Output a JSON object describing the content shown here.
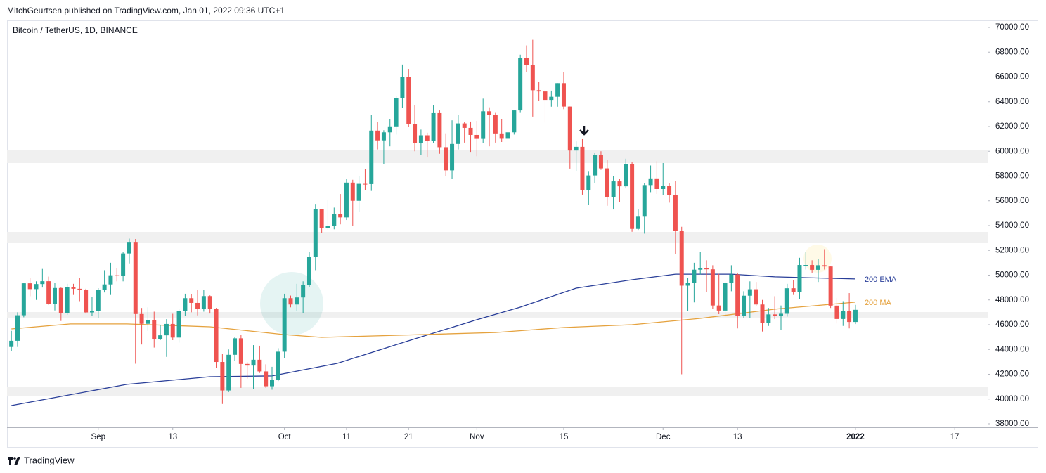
{
  "header": {
    "publisher": "MitchGeurtsen published on TradingView.com, Jan 01, 2022 09:36 UTC+1",
    "footer": "TradingView"
  },
  "chart_data": {
    "type": "candlestick",
    "symbol": "Bitcoin / TetherUS, 1D, BINANCE",
    "up_color": "#26a69a",
    "down_color": "#ef5350",
    "xlim": [
      -0.7,
      157.3
    ],
    "xticks": [
      {
        "value": 14,
        "label": "Sep"
      },
      {
        "value": 26,
        "label": "13"
      },
      {
        "value": 44,
        "label": "Oct"
      },
      {
        "value": 54,
        "label": "11"
      },
      {
        "value": 64,
        "label": "21"
      },
      {
        "value": 75,
        "label": "Nov"
      },
      {
        "value": 89,
        "label": "15"
      },
      {
        "value": 105,
        "label": "Dec"
      },
      {
        "value": 117,
        "label": "13"
      },
      {
        "value": 136,
        "label": "2022"
      },
      {
        "value": 152,
        "label": "17"
      }
    ],
    "ylim": [
      37715,
      70510
    ],
    "yticks": [
      {
        "value": 38000,
        "label": "38000.00"
      },
      {
        "value": 40000,
        "label": "40000.00"
      },
      {
        "value": 42000,
        "label": "42000.00"
      },
      {
        "value": 44000,
        "label": "44000.00"
      },
      {
        "value": 46000,
        "label": "46000.00"
      },
      {
        "value": 48000,
        "label": "48000.00"
      },
      {
        "value": 50000,
        "label": "50000.00"
      },
      {
        "value": 52000,
        "label": "52000.00"
      },
      {
        "value": 54000,
        "label": "54000.00"
      },
      {
        "value": 56000,
        "label": "56000.00"
      },
      {
        "value": 58000,
        "label": "58000.00"
      },
      {
        "value": 60000,
        "label": "60000.00"
      },
      {
        "value": 62000,
        "label": "62000.00"
      },
      {
        "value": 64000,
        "label": "64000.00"
      },
      {
        "value": 66000,
        "label": "66000.00"
      },
      {
        "value": 68000,
        "label": "68000.00"
      },
      {
        "value": 70000,
        "label": "70000.00"
      }
    ],
    "zones": [
      [
        59050,
        60070
      ],
      [
        52580,
        53490
      ],
      [
        46570,
        47020
      ],
      [
        40210,
        41000
      ]
    ],
    "zone_color": "#f0f0f0",
    "lines": [
      {
        "name": "200 EMA",
        "color": "#2a3f99",
        "x": [
          0,
          18.6,
          32,
          42,
          52.5,
          64,
          75,
          82,
          91,
          100,
          107,
          116,
          123,
          136
        ],
        "values": [
          39474,
          41180,
          41800,
          41860,
          42880,
          44700,
          46400,
          47420,
          48950,
          49630,
          50080,
          50080,
          49860,
          49690
        ]
      },
      {
        "name": "200 MA",
        "color": "#e5a23e",
        "x": [
          0,
          9.5,
          18.6,
          32,
          44,
          50,
          66,
          78,
          89,
          100,
          111,
          123,
          136
        ],
        "values": [
          45660,
          46060,
          46060,
          45830,
          45200,
          44980,
          45200,
          45370,
          45770,
          46000,
          46510,
          47250,
          47820
        ]
      }
    ],
    "ohlc": [
      [
        44200,
        45500,
        43900,
        44700
      ],
      [
        44700,
        47000,
        44200,
        46760
      ],
      [
        46760,
        49400,
        46600,
        49340
      ],
      [
        49340,
        49760,
        48300,
        48870
      ],
      [
        48870,
        49500,
        48000,
        49280
      ],
      [
        49280,
        50500,
        49000,
        49510
      ],
      [
        49510,
        49880,
        47600,
        47700
      ],
      [
        47700,
        49350,
        47150,
        48960
      ],
      [
        48960,
        49000,
        46300,
        46940
      ],
      [
        46940,
        49300,
        46800,
        49060
      ],
      [
        49060,
        49300,
        48400,
        48900
      ],
      [
        48900,
        49750,
        47900,
        48810
      ],
      [
        48810,
        48900,
        46900,
        46990
      ],
      [
        46990,
        48250,
        46700,
        47110
      ],
      [
        47110,
        48950,
        46550,
        48810
      ],
      [
        48810,
        50400,
        48600,
        49250
      ],
      [
        49250,
        51000,
        48400,
        49990
      ],
      [
        49990,
        50560,
        49500,
        49920
      ],
      [
        49920,
        51900,
        49500,
        51750
      ],
      [
        51750,
        52950,
        50950,
        52630
      ],
      [
        52630,
        52920,
        42850,
        46860
      ],
      [
        46860,
        47350,
        44400,
        46070
      ],
      [
        46070,
        47400,
        45500,
        46370
      ],
      [
        46370,
        47050,
        44150,
        44850
      ],
      [
        44850,
        45980,
        44750,
        45140
      ],
      [
        45140,
        46450,
        43400,
        46060
      ],
      [
        46060,
        46880,
        44750,
        44960
      ],
      [
        44960,
        47250,
        44550,
        47110
      ],
      [
        47110,
        48500,
        46700,
        48140
      ],
      [
        48140,
        48480,
        47000,
        47760
      ],
      [
        47760,
        48800,
        46750,
        47300
      ],
      [
        47300,
        48820,
        47050,
        48310
      ],
      [
        48310,
        48370,
        46900,
        47260
      ],
      [
        47260,
        47350,
        42500,
        42990
      ],
      [
        42990,
        43650,
        39600,
        40690
      ],
      [
        40690,
        44000,
        40550,
        43570
      ],
      [
        43570,
        45000,
        43100,
        44900
      ],
      [
        44900,
        45200,
        40900,
        42830
      ],
      [
        42830,
        42970,
        41650,
        42700
      ],
      [
        42700,
        44350,
        40800,
        43170
      ],
      [
        43170,
        44300,
        42100,
        42230
      ],
      [
        42230,
        42800,
        40900,
        41030
      ],
      [
        41030,
        42600,
        40750,
        41520
      ],
      [
        41520,
        44100,
        41450,
        43820
      ],
      [
        43820,
        48500,
        43300,
        48140
      ],
      [
        48140,
        48350,
        47400,
        47630
      ],
      [
        47630,
        49300,
        47100,
        48200
      ],
      [
        48200,
        49500,
        46950,
        49220
      ],
      [
        49220,
        51900,
        49050,
        51470
      ],
      [
        51470,
        55750,
        50400,
        55320
      ],
      [
        55320,
        55300,
        53400,
        53790
      ],
      [
        53790,
        56100,
        53650,
        53950
      ],
      [
        53950,
        55450,
        53700,
        54960
      ],
      [
        54960,
        56550,
        54100,
        54660
      ],
      [
        54660,
        57800,
        54450,
        57470
      ],
      [
        57470,
        57700,
        54000,
        56000
      ],
      [
        56000,
        58000,
        55100,
        57370
      ],
      [
        57370,
        58550,
        56850,
        57350
      ],
      [
        57350,
        62950,
        56800,
        61670
      ],
      [
        61670,
        62350,
        60150,
        60880
      ],
      [
        60880,
        61700,
        58950,
        61530
      ],
      [
        61530,
        62600,
        60400,
        62010
      ],
      [
        62010,
        64500,
        61350,
        64280
      ],
      [
        64280,
        67000,
        63500,
        66000
      ],
      [
        66000,
        66650,
        62000,
        62210
      ],
      [
        62210,
        63700,
        60000,
        60690
      ],
      [
        60690,
        61750,
        59700,
        61290
      ],
      [
        61290,
        61500,
        59500,
        60850
      ],
      [
        60850,
        63700,
        60650,
        63080
      ],
      [
        63080,
        63300,
        59800,
        60330
      ],
      [
        60330,
        61450,
        58000,
        58460
      ],
      [
        58460,
        62500,
        57800,
        60590
      ],
      [
        60590,
        62950,
        60150,
        62250
      ],
      [
        62250,
        62350,
        60700,
        61890
      ],
      [
        61890,
        62400,
        59950,
        61320
      ],
      [
        61320,
        62450,
        59600,
        61000
      ],
      [
        61000,
        64250,
        60650,
        63230
      ],
      [
        63230,
        63550,
        60400,
        62930
      ],
      [
        62930,
        63100,
        60700,
        61440
      ],
      [
        61440,
        62600,
        60750,
        61010
      ],
      [
        61010,
        61600,
        60100,
        61530
      ],
      [
        61530,
        63300,
        61350,
        63300
      ],
      [
        63300,
        67800,
        63100,
        67550
      ],
      [
        67550,
        68550,
        66400,
        66940
      ],
      [
        66940,
        69000,
        62800,
        64930
      ],
      [
        64930,
        65600,
        64100,
        64830
      ],
      [
        64830,
        65000,
        62300,
        64150
      ],
      [
        64150,
        64900,
        63600,
        64400
      ],
      [
        64400,
        65500,
        63600,
        65500
      ],
      [
        65500,
        66400,
        63400,
        63610
      ],
      [
        63610,
        63620,
        58600,
        60060
      ],
      [
        60060,
        60800,
        58400,
        60360
      ],
      [
        60360,
        60980,
        56500,
        56890
      ],
      [
        56890,
        58350,
        55700,
        58050
      ],
      [
        58050,
        59850,
        57450,
        59710
      ],
      [
        59710,
        60000,
        58500,
        58620
      ],
      [
        58620,
        59300,
        55600,
        56280
      ],
      [
        56280,
        58000,
        55300,
        57570
      ],
      [
        57570,
        57800,
        55900,
        57170
      ],
      [
        57170,
        59400,
        57000,
        58960
      ],
      [
        58960,
        59150,
        53500,
        53730
      ],
      [
        53730,
        55300,
        53650,
        54720
      ],
      [
        54720,
        57450,
        53350,
        57270
      ],
      [
        57270,
        58850,
        56700,
        57810
      ],
      [
        57810,
        59200,
        56550,
        56950
      ],
      [
        56950,
        59050,
        56450,
        57180
      ],
      [
        57180,
        57400,
        55850,
        56480
      ],
      [
        56480,
        57600,
        51700,
        53600
      ],
      [
        53600,
        53900,
        42000,
        49150
      ],
      [
        49150,
        49750,
        47100,
        49400
      ],
      [
        49400,
        51000,
        47800,
        50440
      ],
      [
        50440,
        51900,
        50050,
        50590
      ],
      [
        50590,
        51200,
        48650,
        50470
      ],
      [
        50470,
        50800,
        47300,
        47550
      ],
      [
        47550,
        50100,
        46850,
        47140
      ],
      [
        47140,
        49500,
        46650,
        49380
      ],
      [
        49380,
        50800,
        48700,
        50050
      ],
      [
        50050,
        50200,
        45700,
        46700
      ],
      [
        46700,
        48700,
        46550,
        48340
      ],
      [
        48340,
        49500,
        46550,
        48860
      ],
      [
        48860,
        49450,
        47500,
        47630
      ],
      [
        47630,
        48000,
        45450,
        46130
      ],
      [
        46130,
        47350,
        45900,
        46830
      ],
      [
        46830,
        48300,
        46450,
        46680
      ],
      [
        46680,
        47550,
        45550,
        46880
      ],
      [
        46880,
        49300,
        46650,
        48940
      ],
      [
        48940,
        49600,
        48400,
        48620
      ],
      [
        48620,
        51400,
        48050,
        50820
      ],
      [
        50820,
        51850,
        50450,
        50820
      ],
      [
        50820,
        51200,
        50200,
        50430
      ],
      [
        50430,
        51300,
        49450,
        50800
      ],
      [
        50800,
        52100,
        50450,
        50700
      ],
      [
        50700,
        50700,
        47350,
        47540
      ],
      [
        47540,
        48150,
        46100,
        46460
      ],
      [
        46460,
        47900,
        45900,
        47120
      ],
      [
        47120,
        48550,
        45700,
        46220
      ],
      [
        46220,
        47600,
        46050,
        47200
      ]
    ]
  }
}
